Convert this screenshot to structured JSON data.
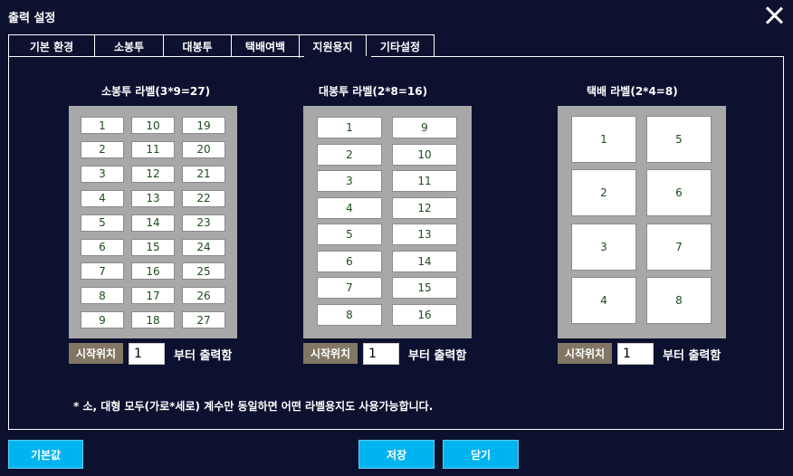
{
  "window": {
    "title": "출력 설정"
  },
  "tabs": [
    "기본 환경",
    "소봉투",
    "대봉투",
    "택배여백",
    "지원용지",
    "기타설정"
  ],
  "active_tab": "지원용지",
  "groups": [
    {
      "title": "소봉투 라벨(3*9=27)",
      "cells": [
        "1",
        "10",
        "19",
        "2",
        "11",
        "20",
        "3",
        "12",
        "21",
        "4",
        "13",
        "22",
        "5",
        "14",
        "23",
        "6",
        "15",
        "24",
        "7",
        "16",
        "25",
        "8",
        "17",
        "26",
        "9",
        "18",
        "27"
      ]
    },
    {
      "title": "대봉투 라벨(2*8=16)",
      "cells": [
        "1",
        "9",
        "2",
        "10",
        "3",
        "11",
        "4",
        "12",
        "5",
        "13",
        "6",
        "14",
        "7",
        "15",
        "8",
        "16"
      ]
    },
    {
      "title": "택배 라벨(2*4=8)",
      "cells": [
        "1",
        "5",
        "2",
        "6",
        "3",
        "7",
        "4",
        "8"
      ]
    }
  ],
  "start_position": {
    "label": "시작위치",
    "value": "1",
    "suffix": "부터 출력함"
  },
  "footnote": "* 소, 대형 모두(가로*세로) 계수만 동일하면 어떤 라벨용지도 사용가능합니다.",
  "buttons": {
    "default": "기본값",
    "save": "저장",
    "close": "닫기"
  }
}
